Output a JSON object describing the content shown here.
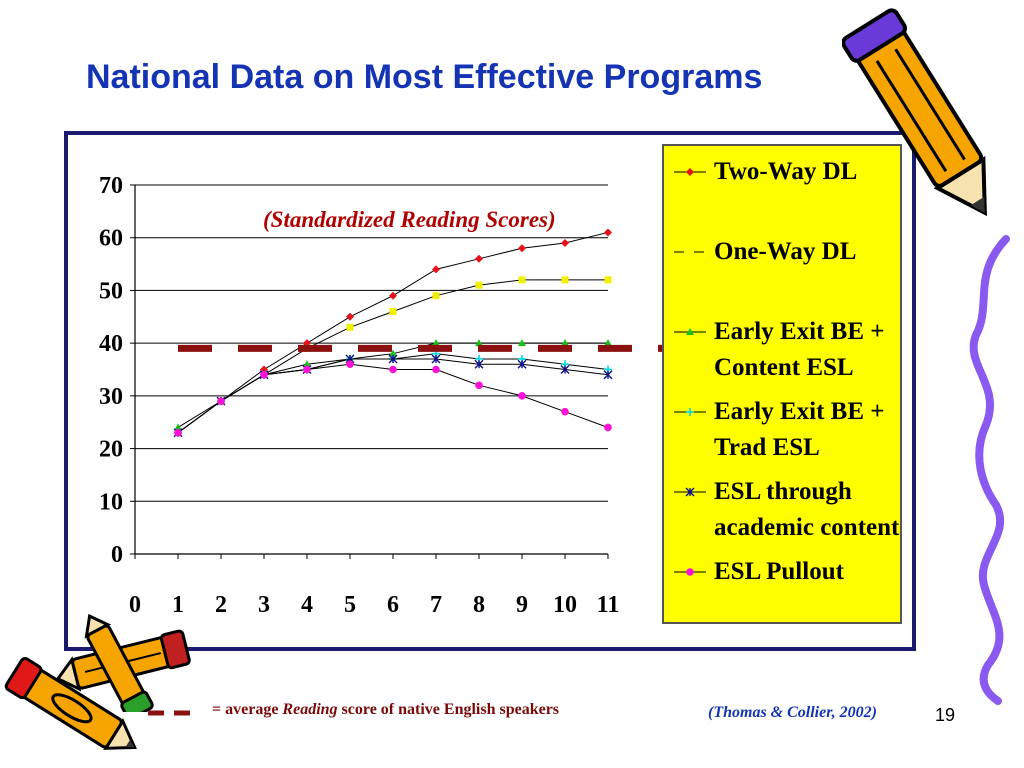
{
  "slide": {
    "title": "National Data on Most Effective Programs",
    "page_number": "19"
  },
  "footnote": {
    "prefix": "= average ",
    "italic_word": "Reading",
    "suffix": " score of native English speakers",
    "citation": "(Thomas & Collier, 2002)"
  },
  "colors": {
    "title": "#1434b4",
    "average_line": "#8b1010",
    "legend_background": "#ffff00",
    "frame_border": "#1a1a6e"
  },
  "decorations": [
    "pencil-icon",
    "pencil-icon",
    "pencil-icon",
    "squiggle-line"
  ],
  "chart_data": {
    "type": "line",
    "title": "",
    "annotation": "(Standardized Reading Scores)",
    "xlabel": "",
    "ylabel": "",
    "xlim": [
      0,
      11
    ],
    "ylim": [
      0,
      70
    ],
    "x_ticks": [
      "0",
      "1",
      "2",
      "3",
      "4",
      "5",
      "6",
      "7",
      "8",
      "9",
      "10",
      "11"
    ],
    "y_ticks": [
      "0",
      "10",
      "20",
      "30",
      "40",
      "50",
      "60",
      "70"
    ],
    "grid": "horizontal",
    "legend_position": "right",
    "x": [
      1,
      2,
      3,
      4,
      5,
      6,
      7,
      8,
      9,
      10,
      11
    ],
    "series": [
      {
        "name": "Two-Way DL",
        "color": "#e8101a",
        "marker": "diamond",
        "values": [
          23,
          29,
          35,
          40,
          45,
          49,
          54,
          56,
          58,
          59,
          61
        ]
      },
      {
        "name": "One-Way DL",
        "color": "#f0f000",
        "marker": "square",
        "values": [
          23,
          29,
          34,
          39,
          43,
          46,
          49,
          51,
          52,
          52,
          52
        ]
      },
      {
        "name": "Early Exit BE + Content ESL",
        "color": "#18c018",
        "marker": "triangle",
        "values": [
          24,
          29,
          34,
          36,
          37,
          38,
          40,
          40,
          40,
          40,
          40
        ]
      },
      {
        "name": "Early Exit BE + Trad ESL",
        "color": "#00d8e8",
        "marker": "cross",
        "values": [
          23,
          29,
          34,
          35,
          37,
          37,
          38,
          37,
          37,
          36,
          35
        ]
      },
      {
        "name": "ESL through academic content",
        "color": "#10108c",
        "marker": "star",
        "values": [
          23,
          29,
          34,
          35,
          37,
          37,
          37,
          36,
          36,
          35,
          34
        ]
      },
      {
        "name": "ESL Pullout",
        "color": "#ff10d8",
        "marker": "circle",
        "values": [
          23,
          29,
          34,
          35,
          36,
          35,
          35,
          32,
          30,
          27,
          24
        ]
      }
    ],
    "reference_line": {
      "value": 39,
      "style": "dashed",
      "color": "#8b1010"
    }
  }
}
